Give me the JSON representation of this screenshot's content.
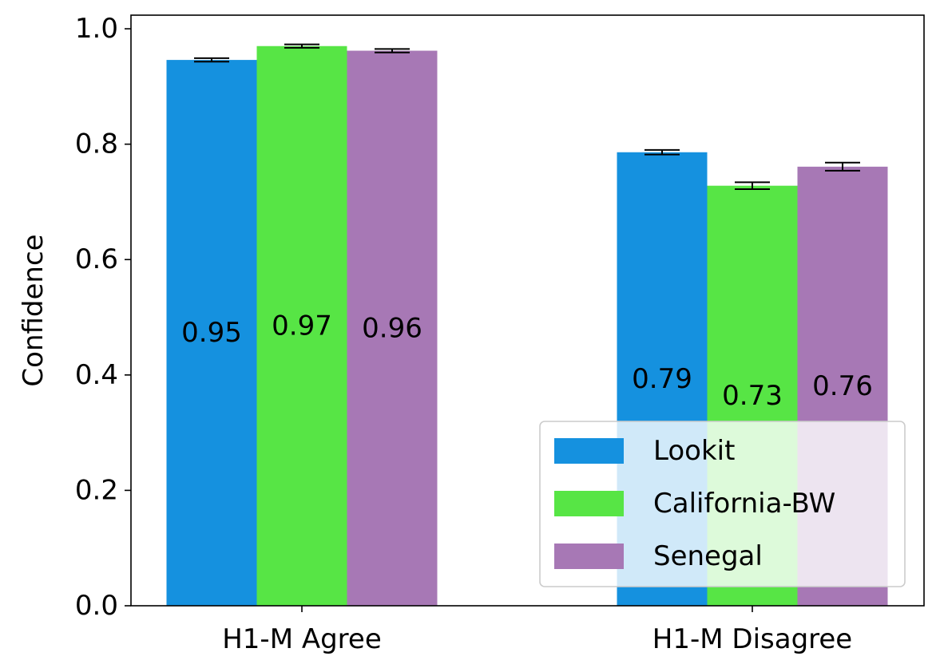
{
  "chart_data": {
    "type": "bar",
    "categories": [
      "H1-M Agree",
      "H1-M Disagree"
    ],
    "series": [
      {
        "name": "Lookit",
        "values": [
          0.946,
          0.786
        ],
        "errors": [
          0.003,
          0.004
        ],
        "labels": [
          "0.95",
          "0.79"
        ],
        "color": "#1591df"
      },
      {
        "name": "California-BW",
        "values": [
          0.97,
          0.728
        ],
        "errors": [
          0.003,
          0.006
        ],
        "labels": [
          "0.97",
          "0.73"
        ],
        "color": "#57e545"
      },
      {
        "name": "Senegal",
        "values": [
          0.962,
          0.761
        ],
        "errors": [
          0.003,
          0.007
        ],
        "labels": [
          "0.96",
          "0.76"
        ],
        "color": "#a778b5"
      }
    ],
    "xlabel": "",
    "ylabel": "Confidence",
    "ylim": [
      0,
      1.0
    ],
    "yticks": [
      "0.0",
      "0.2",
      "0.4",
      "0.6",
      "0.8",
      "1.0"
    ],
    "legend_position": "lower-right",
    "grid": false
  }
}
